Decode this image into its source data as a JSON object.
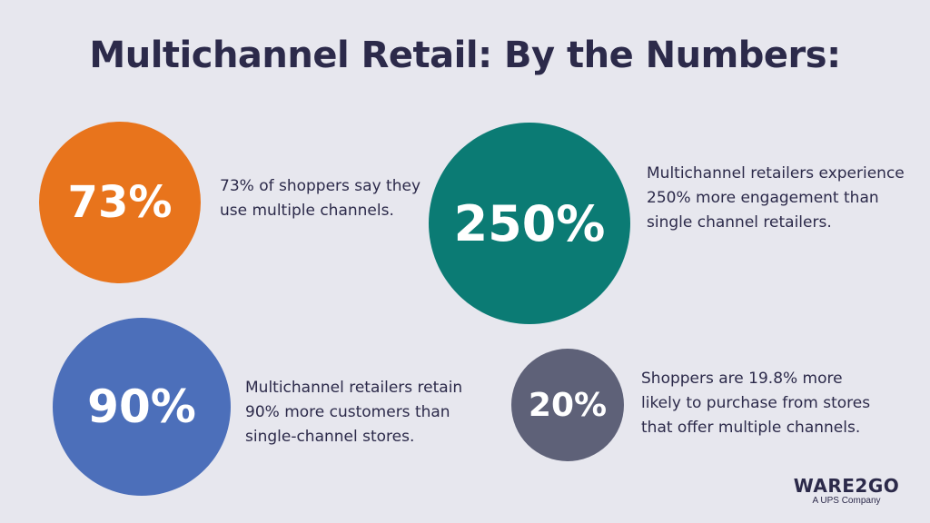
{
  "title": "Multichannel Retail: By the Numbers:",
  "colors": {
    "background": "#e7e7ee",
    "text": "#2c2a4a",
    "orange": "#e8741c",
    "teal": "#0b7b74",
    "blue": "#4c6fba",
    "slate": "#5e6178"
  },
  "stats": [
    {
      "value": "73%",
      "color": "orange",
      "lines": [
        "73% of shoppers say they",
        "use multiple channels."
      ]
    },
    {
      "value": "250%",
      "color": "teal",
      "lines": [
        "Multichannel retailers experience",
        "250% more engagement than",
        "single channel retailers."
      ]
    },
    {
      "value": "90%",
      "color": "blue",
      "lines": [
        "Multichannel retailers retain",
        "90% more customers than",
        "single-channel stores."
      ]
    },
    {
      "value": "20%",
      "color": "slate",
      "lines": [
        "Shoppers are 19.8% more",
        "likely to purchase from stores",
        "that offer multiple channels."
      ]
    }
  ],
  "logo": {
    "name": "WARE2GO",
    "tagline": "A UPS Company"
  }
}
